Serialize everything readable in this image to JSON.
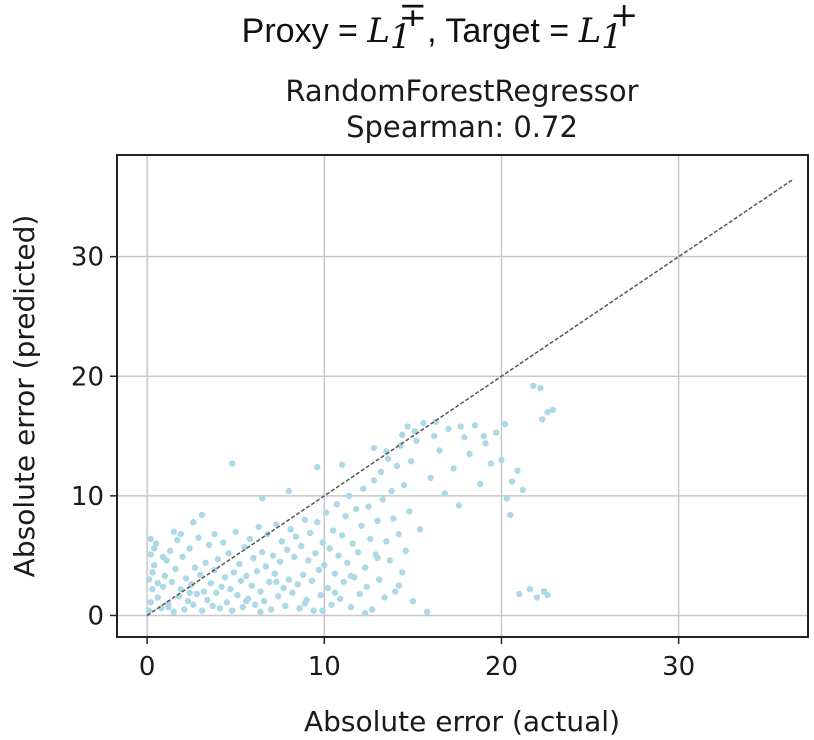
{
  "figure": {
    "suptitle_prefix": "Proxy = ",
    "suptitle_proxy_symbol": "L",
    "suptitle_proxy_sub": "1",
    "suptitle_proxy_sup": "∓",
    "suptitle_middle": ", Target = ",
    "suptitle_target_symbol": "L",
    "suptitle_target_sub": "1",
    "suptitle_target_sup": "+"
  },
  "colors": {
    "points": "#add8e6",
    "diagonal": "#555555",
    "grid": "#c8c8c8",
    "axes": "#222222"
  },
  "chart_data": {
    "type": "scatter",
    "title": "RandomForestRegressor",
    "subtitle": "Spearman: 0.72",
    "xlabel": "Absolute error (actual)",
    "ylabel": "Absolute error (predicted)",
    "xlim": [
      -1.7,
      37.3
    ],
    "ylim": [
      -1.8,
      38.5
    ],
    "xticks": [
      0,
      10,
      20,
      30
    ],
    "yticks": [
      0,
      10,
      20,
      30
    ],
    "grid": true,
    "reference_line": {
      "style": "dashed",
      "from": [
        0,
        0
      ],
      "to": [
        36.5,
        36.5
      ]
    },
    "series": [
      {
        "marker": "dot",
        "points": [
          [
            0.1,
            0.4
          ],
          [
            0.2,
            1.1
          ],
          [
            0.3,
            2.2
          ],
          [
            0.1,
            3.0
          ],
          [
            0.4,
            4.2
          ],
          [
            0.2,
            5.1
          ],
          [
            0.5,
            6.0
          ],
          [
            0.3,
            3.6
          ],
          [
            0.6,
            1.5
          ],
          [
            0.8,
            0.6
          ],
          [
            0.9,
            2.4
          ],
          [
            1.0,
            3.3
          ],
          [
            1.1,
            4.6
          ],
          [
            1.2,
            1.0
          ],
          [
            1.3,
            5.4
          ],
          [
            1.4,
            2.8
          ],
          [
            1.5,
            0.3
          ],
          [
            1.6,
            3.9
          ],
          [
            1.7,
            6.3
          ],
          [
            1.8,
            1.6
          ],
          [
            1.9,
            2.2
          ],
          [
            2.0,
            4.9
          ],
          [
            2.1,
            0.5
          ],
          [
            2.2,
            3.1
          ],
          [
            2.3,
            1.2
          ],
          [
            2.4,
            5.6
          ],
          [
            2.5,
            2.6
          ],
          [
            2.6,
            0.9
          ],
          [
            2.7,
            4.0
          ],
          [
            2.8,
            1.8
          ],
          [
            2.9,
            6.5
          ],
          [
            3.0,
            3.4
          ],
          [
            3.1,
            0.4
          ],
          [
            3.2,
            2.0
          ],
          [
            3.3,
            4.4
          ],
          [
            3.4,
            1.3
          ],
          [
            3.5,
            5.9
          ],
          [
            3.6,
            2.7
          ],
          [
            3.7,
            0.8
          ],
          [
            3.8,
            3.8
          ],
          [
            3.9,
            1.9
          ],
          [
            4.0,
            4.7
          ],
          [
            4.1,
            0.6
          ],
          [
            4.2,
            2.4
          ],
          [
            4.3,
            6.1
          ],
          [
            4.4,
            3.2
          ],
          [
            4.5,
            1.1
          ],
          [
            4.6,
            5.2
          ],
          [
            4.7,
            2.2
          ],
          [
            4.8,
            0.4
          ],
          [
            4.9,
            3.6
          ],
          [
            5.0,
            7.0
          ],
          [
            5.1,
            1.7
          ],
          [
            5.2,
            4.3
          ],
          [
            5.3,
            2.9
          ],
          [
            5.4,
            0.7
          ],
          [
            5.5,
            5.7
          ],
          [
            5.6,
            3.3
          ],
          [
            5.7,
            1.4
          ],
          [
            5.8,
            6.4
          ],
          [
            5.9,
            2.5
          ],
          [
            6.0,
            4.8
          ],
          [
            6.1,
            0.9
          ],
          [
            6.2,
            3.7
          ],
          [
            6.3,
            7.4
          ],
          [
            6.4,
            2.0
          ],
          [
            6.5,
            5.3
          ],
          [
            6.6,
            1.2
          ],
          [
            6.7,
            4.1
          ],
          [
            6.8,
            6.8
          ],
          [
            6.9,
            2.8
          ],
          [
            7.0,
            0.5
          ],
          [
            7.1,
            5.0
          ],
          [
            7.2,
            3.5
          ],
          [
            7.3,
            7.6
          ],
          [
            7.4,
            1.6
          ],
          [
            7.5,
            4.5
          ],
          [
            7.6,
            6.2
          ],
          [
            7.7,
            2.3
          ],
          [
            7.8,
            0.8
          ],
          [
            7.9,
            5.5
          ],
          [
            8.0,
            3.0
          ],
          [
            8.1,
            7.2
          ],
          [
            8.2,
            1.9
          ],
          [
            8.3,
            4.9
          ],
          [
            8.4,
            6.6
          ],
          [
            8.5,
            2.6
          ],
          [
            8.6,
            0.6
          ],
          [
            8.7,
            5.8
          ],
          [
            8.8,
            3.4
          ],
          [
            8.9,
            8.0
          ],
          [
            9.0,
            1.3
          ],
          [
            9.1,
            4.6
          ],
          [
            9.2,
            6.9
          ],
          [
            9.3,
            2.9
          ],
          [
            9.4,
            0.4
          ],
          [
            9.5,
            5.2
          ],
          [
            9.6,
            7.8
          ],
          [
            9.7,
            3.8
          ],
          [
            9.8,
            1.7
          ],
          [
            9.9,
            6.1
          ],
          [
            10.0,
            4.2
          ],
          [
            10.1,
            8.6
          ],
          [
            10.2,
            2.3
          ],
          [
            10.3,
            5.6
          ],
          [
            10.4,
            0.9
          ],
          [
            10.5,
            7.1
          ],
          [
            10.6,
            3.5
          ],
          [
            10.7,
            9.3
          ],
          [
            10.8,
            5.0
          ],
          [
            10.9,
            1.4
          ],
          [
            11.0,
            6.7
          ],
          [
            11.1,
            2.8
          ],
          [
            11.2,
            8.3
          ],
          [
            11.3,
            4.4
          ],
          [
            11.4,
            10.0
          ],
          [
            11.5,
            0.7
          ],
          [
            11.6,
            6.0
          ],
          [
            11.7,
            3.2
          ],
          [
            11.8,
            8.9
          ],
          [
            11.9,
            5.3
          ],
          [
            12.0,
            1.8
          ],
          [
            12.1,
            7.5
          ],
          [
            12.2,
            10.6
          ],
          [
            12.3,
            4.0
          ],
          [
            12.4,
            2.4
          ],
          [
            12.5,
            9.1
          ],
          [
            12.6,
            6.4
          ],
          [
            12.7,
            0.5
          ],
          [
            12.8,
            11.3
          ],
          [
            12.9,
            5.1
          ],
          [
            13.0,
            7.9
          ],
          [
            13.1,
            3.0
          ],
          [
            13.2,
            12.0
          ],
          [
            13.3,
            9.7
          ],
          [
            13.4,
            1.5
          ],
          [
            13.5,
            6.2
          ],
          [
            13.6,
            13.1
          ],
          [
            13.7,
            4.6
          ],
          [
            13.8,
            10.4
          ],
          [
            13.9,
            8.1
          ],
          [
            14.0,
            2.0
          ],
          [
            14.1,
            12.5
          ],
          [
            14.2,
            6.8
          ],
          [
            14.3,
            14.2
          ],
          [
            14.4,
            3.6
          ],
          [
            14.5,
            10.9
          ],
          [
            14.6,
            5.4
          ],
          [
            14.7,
            15.8
          ],
          [
            14.8,
            8.7
          ],
          [
            14.9,
            12.9
          ],
          [
            15.0,
            1.2
          ],
          [
            15.2,
            14.6
          ],
          [
            15.4,
            7.2
          ],
          [
            15.6,
            16.1
          ],
          [
            15.8,
            0.3
          ],
          [
            16.0,
            11.5
          ],
          [
            16.2,
            15.0
          ],
          [
            16.5,
            13.8
          ],
          [
            16.8,
            10.2
          ],
          [
            17.0,
            15.6
          ],
          [
            17.3,
            12.3
          ],
          [
            17.6,
            9.2
          ],
          [
            17.9,
            14.9
          ],
          [
            18.2,
            13.5
          ],
          [
            18.5,
            15.9
          ],
          [
            18.8,
            11.0
          ],
          [
            19.1,
            14.4
          ],
          [
            19.4,
            12.7
          ],
          [
            19.7,
            15.3
          ],
          [
            20.0,
            13.0
          ],
          [
            20.3,
            9.8
          ],
          [
            20.6,
            11.2
          ],
          [
            20.9,
            12.1
          ],
          [
            21.2,
            10.5
          ],
          [
            20.5,
            8.4
          ],
          [
            21.0,
            1.8
          ],
          [
            21.6,
            2.2
          ],
          [
            22.0,
            1.5
          ],
          [
            22.4,
            2.0
          ],
          [
            22.6,
            1.7
          ],
          [
            21.8,
            19.2
          ],
          [
            22.2,
            19.0
          ],
          [
            22.3,
            16.4
          ],
          [
            22.6,
            17.0
          ],
          [
            22.9,
            17.2
          ],
          [
            3.1,
            8.4
          ],
          [
            4.8,
            12.7
          ],
          [
            6.5,
            9.8
          ],
          [
            8.0,
            10.4
          ],
          [
            9.6,
            12.4
          ],
          [
            11.0,
            12.6
          ],
          [
            12.8,
            14.0
          ],
          [
            13.5,
            13.7
          ],
          [
            14.4,
            15.1
          ],
          [
            15.1,
            15.4
          ],
          [
            16.3,
            16.2
          ],
          [
            17.7,
            15.8
          ],
          [
            19.0,
            15.0
          ],
          [
            20.2,
            16.0
          ],
          [
            5.6,
            1.2
          ],
          [
            6.4,
            0.3
          ],
          [
            7.3,
            2.8
          ],
          [
            8.9,
            1.0
          ],
          [
            9.9,
            0.4
          ],
          [
            10.6,
            1.9
          ],
          [
            11.5,
            3.3
          ],
          [
            12.3,
            0.2
          ],
          [
            13.0,
            4.8
          ],
          [
            14.2,
            2.5
          ],
          [
            1.5,
            7.0
          ],
          [
            2.6,
            7.8
          ],
          [
            3.8,
            6.8
          ],
          [
            1.9,
            6.8
          ],
          [
            2.4,
            1.9
          ],
          [
            0.6,
            2.7
          ],
          [
            0.9,
            4.9
          ],
          [
            1.2,
            0.7
          ],
          [
            0.4,
            5.6
          ],
          [
            0.2,
            6.4
          ]
        ]
      }
    ]
  }
}
